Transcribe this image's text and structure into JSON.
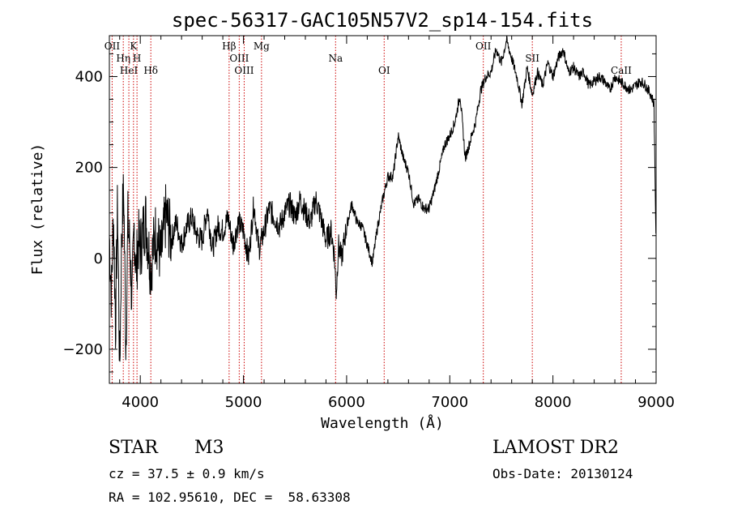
{
  "chart_data": {
    "type": "line",
    "title": "spec-56317-GAC105N57V2_sp14-154.fits",
    "xlabel": "Wavelength (Å)",
    "ylabel": "Flux (relative)",
    "xlim": [
      3700,
      9000
    ],
    "ylim": [
      -275,
      490
    ],
    "xticks": [
      4000,
      5000,
      6000,
      7000,
      8000,
      9000
    ],
    "yticks": [
      -200,
      0,
      200,
      400
    ],
    "grid": false,
    "line_color": "#000000",
    "marker_color": "#cc0000",
    "series": [
      {
        "x": [
          3700,
          3720,
          3740,
          3760,
          3780,
          3800,
          3820,
          3840,
          3860,
          3880,
          3900,
          3920,
          3940,
          3960,
          3980,
          4000,
          4050,
          4100,
          4150,
          4200,
          4250,
          4300,
          4350,
          4400,
          4450,
          4500,
          4550,
          4600,
          4650,
          4700,
          4750,
          4800,
          4850,
          4900,
          4950,
          5000,
          5050,
          5100,
          5150,
          5200,
          5250,
          5300,
          5350,
          5400,
          5450,
          5500,
          5550,
          5600,
          5650,
          5700,
          5750,
          5800,
          5850,
          5880,
          5900,
          5920,
          5950,
          6000,
          6050,
          6100,
          6150,
          6200,
          6250,
          6300,
          6350,
          6400,
          6450,
          6500,
          6550,
          6600,
          6650,
          6700,
          6750,
          6800,
          6850,
          6900,
          6950,
          7000,
          7050,
          7100,
          7150,
          7200,
          7250,
          7300,
          7350,
          7400,
          7450,
          7500,
          7550,
          7600,
          7650,
          7700,
          7750,
          7800,
          7850,
          7900,
          7950,
          8000,
          8050,
          8100,
          8150,
          8200,
          8250,
          8300,
          8350,
          8400,
          8450,
          8500,
          8550,
          8600,
          8650,
          8700,
          8750,
          8800,
          8850,
          8900,
          8950,
          8980,
          9000
        ],
        "y": [
          50,
          -80,
          100,
          -150,
          120,
          -250,
          60,
          150,
          -200,
          80,
          20,
          -100,
          70,
          -30,
          40,
          20,
          90,
          -20,
          60,
          0,
          100,
          40,
          80,
          30,
          70,
          90,
          50,
          40,
          110,
          20,
          70,
          60,
          90,
          30,
          80,
          60,
          0,
          120,
          20,
          60,
          110,
          90,
          70,
          100,
          120,
          90,
          130,
          100,
          80,
          130,
          90,
          40,
          60,
          10,
          -80,
          30,
          0,
          70,
          120,
          80,
          70,
          30,
          -10,
          70,
          130,
          180,
          180,
          270,
          220,
          190,
          120,
          130,
          110,
          110,
          150,
          200,
          250,
          270,
          300,
          360,
          220,
          260,
          300,
          370,
          400,
          410,
          460,
          430,
          480,
          440,
          400,
          340,
          420,
          360,
          410,
          380,
          430,
          400,
          440,
          460,
          410,
          420,
          400,
          410,
          380,
          390,
          400,
          390,
          370,
          400,
          390,
          380,
          370,
          380,
          390,
          380,
          360,
          340,
          10
        ]
      }
    ],
    "lines": [
      {
        "label": "OII",
        "x": 3727
      },
      {
        "label": "Hη",
        "x": 3835
      },
      {
        "label": "HeI",
        "x": 3889
      },
      {
        "label": "K",
        "x": 3934
      },
      {
        "label": "H",
        "x": 3968
      },
      {
        "label": "Hδ",
        "x": 4102
      },
      {
        "label": "Hβ",
        "x": 4861
      },
      {
        "label": "OIII",
        "x": 4959
      },
      {
        "label": "OIII",
        "x": 5007
      },
      {
        "label": "Mg",
        "x": 5175
      },
      {
        "label": "Na",
        "x": 5893
      },
      {
        "label": "OI",
        "x": 6364
      },
      {
        "label": "OII",
        "x": 7325
      },
      {
        "label": "SII",
        "x": 7800
      },
      {
        "label": "CaII",
        "x": 8662
      }
    ]
  },
  "info": {
    "object_class": "STAR",
    "subclass": "M3",
    "survey": "LAMOST DR2",
    "cz": "cz = 37.5 ± 0.9 km/s",
    "obs_date": "Obs-Date: 20130124",
    "coords": "RA = 102.95610, DEC =  58.63308"
  }
}
